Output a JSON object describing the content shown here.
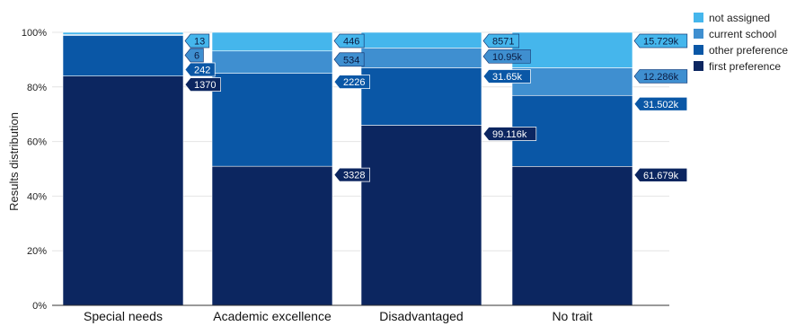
{
  "chart_data": {
    "type": "bar",
    "stacked": true,
    "normalized": true,
    "ylabel": "Results distribution",
    "ylim": [
      0,
      100
    ],
    "yticks": [
      "0%",
      "20%",
      "40%",
      "60%",
      "80%",
      "100%"
    ],
    "categories": [
      "Special needs",
      "Academic excellence",
      "Disadvantaged",
      "No trait"
    ],
    "series": [
      {
        "name": "first preference",
        "color": "#0c2660",
        "values": [
          1370,
          3328,
          99116,
          61679
        ],
        "labels": [
          "1370",
          "3328",
          "99.116k",
          "61.679k"
        ]
      },
      {
        "name": "other preference",
        "color": "#0a57a6",
        "values": [
          242,
          2226,
          31650,
          31502
        ],
        "labels": [
          "242",
          "2226",
          "31.65k",
          "31.502k"
        ]
      },
      {
        "name": "current school",
        "color": "#3f8fd0",
        "values": [
          6,
          534,
          10950,
          12286
        ],
        "labels": [
          "6",
          "534",
          "10.95k",
          "12.286k"
        ]
      },
      {
        "name": "not assigned",
        "color": "#45b6ec",
        "values": [
          13,
          446,
          8571,
          15729
        ],
        "labels": [
          "13",
          "446",
          "8571",
          "15.729k"
        ]
      }
    ],
    "legend_position": "top-right",
    "legend_order": [
      "not assigned",
      "current school",
      "other preference",
      "first preference"
    ],
    "grid": true
  }
}
